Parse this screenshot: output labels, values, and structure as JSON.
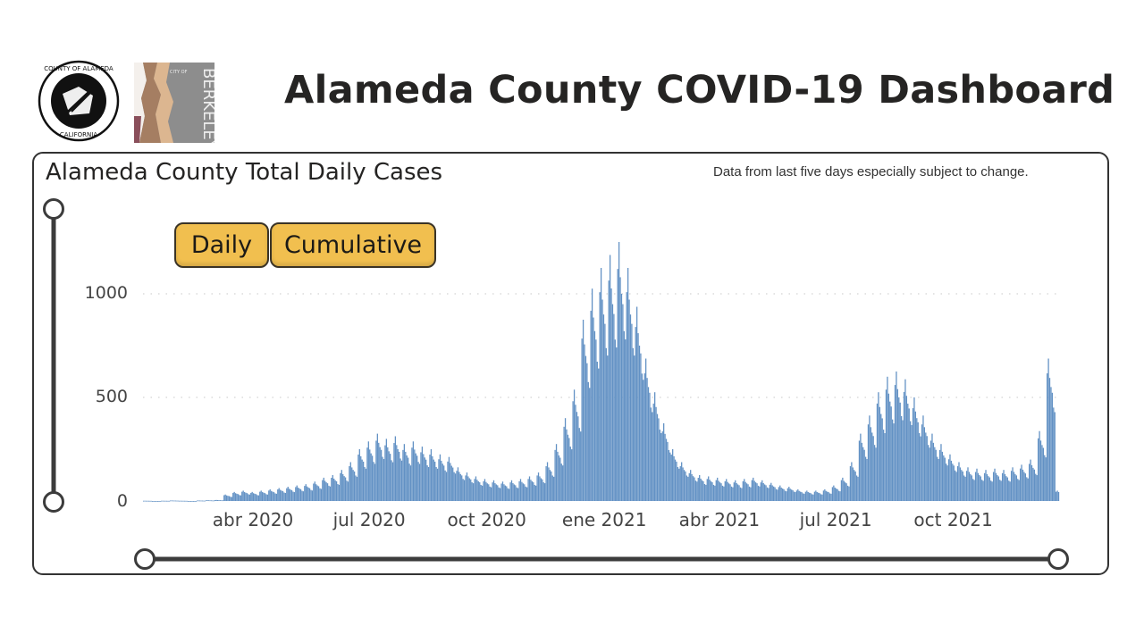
{
  "header": {
    "title": "Alameda County COVID-19 Dashboard",
    "logos": [
      {
        "name": "county-of-alameda-seal",
        "text": "COUNTY OF ALAMEDA · CALIFORNIA"
      },
      {
        "name": "city-of-berkeley-logo",
        "text": "CITY OF BERKELEY"
      }
    ]
  },
  "card": {
    "title": "Alameda County Total Daily Cases",
    "note": "Data from last five days especially subject to change.",
    "buttons": {
      "daily": "Daily",
      "cumulative": "Cumulative"
    }
  },
  "colors": {
    "bar": "#6291c4",
    "button": "#f1bf4f",
    "slider": "#3c3c3c"
  },
  "chart_data": {
    "type": "bar",
    "title": "Alameda County Total Daily Cases",
    "xlabel": "",
    "ylabel": "",
    "ylim": [
      0,
      1300
    ],
    "yticks": [
      0,
      500,
      1000
    ],
    "ytick_labels": [
      "0",
      "500",
      "1000"
    ],
    "xticks": [
      "2020-04-01",
      "2020-07-01",
      "2020-10-01",
      "2021-01-01",
      "2021-04-01",
      "2021-07-01",
      "2021-10-01"
    ],
    "xtick_labels": [
      "abr 2020",
      "jul 2020",
      "oct 2020",
      "ene 2021",
      "abr 2021",
      "jul 2021",
      "oct 2021"
    ],
    "xlim": [
      "2020-01-06",
      "2021-12-29"
    ],
    "grid": "horizontal dotted",
    "resolution": "weekly average of daily cases (approx.)",
    "week_start": "2020-01-06",
    "values": [
      1,
      0,
      1,
      2,
      1,
      0,
      2,
      3,
      4,
      25,
      35,
      40,
      35,
      40,
      45,
      50,
      55,
      60,
      65,
      75,
      90,
      100,
      120,
      150,
      200,
      230,
      260,
      240,
      250,
      220,
      230,
      210,
      200,
      180,
      170,
      130,
      110,
      95,
      85,
      80,
      75,
      80,
      85,
      95,
      110,
      150,
      220,
      320,
      430,
      700,
      820,
      900,
      950,
      1000,
      900,
      750,
      550,
      420,
      300,
      200,
      150,
      120,
      100,
      95,
      90,
      85,
      80,
      85,
      90,
      80,
      70,
      60,
      55,
      45,
      40,
      40,
      45,
      60,
      90,
      150,
      260,
      330,
      420,
      480,
      500,
      470,
      400,
      330,
      260,
      220,
      180,
      150,
      130,
      125,
      120,
      125,
      120,
      130,
      140,
      160,
      270,
      550,
      40
    ],
    "max_daily": 1270
  }
}
